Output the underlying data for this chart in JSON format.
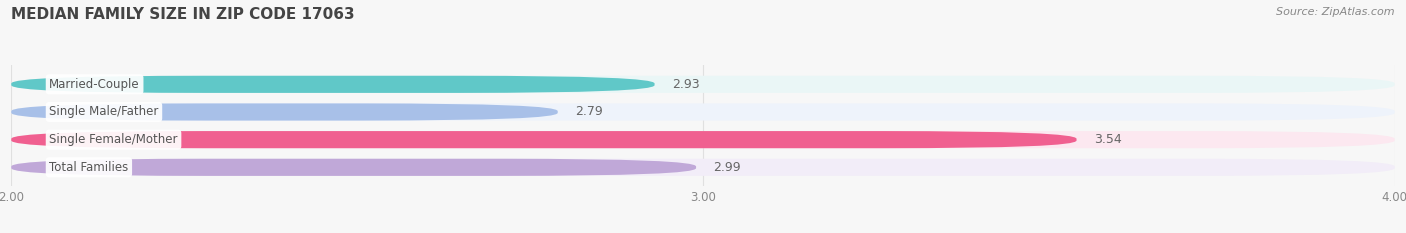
{
  "title": "MEDIAN FAMILY SIZE IN ZIP CODE 17063",
  "source": "Source: ZipAtlas.com",
  "categories": [
    "Married-Couple",
    "Single Male/Father",
    "Single Female/Mother",
    "Total Families"
  ],
  "values": [
    2.93,
    2.79,
    3.54,
    2.99
  ],
  "bar_colors": [
    "#60c8c8",
    "#a8c0e8",
    "#f06090",
    "#c0a8d8"
  ],
  "bar_bg_colors": [
    "#eaf6f6",
    "#eef3fb",
    "#fce8f0",
    "#f2edf8"
  ],
  "xlim": [
    2.0,
    4.0
  ],
  "xticks": [
    2.0,
    3.0,
    4.0
  ],
  "xtick_labels": [
    "2.00",
    "3.00",
    "4.00"
  ],
  "bar_height": 0.62,
  "bar_gap": 0.38,
  "background_color": "#f7f7f7",
  "title_fontsize": 11,
  "label_fontsize": 8.5,
  "value_fontsize": 9,
  "source_fontsize": 8,
  "label_color": "#555555",
  "tick_color": "#aaaaaa",
  "grid_color": "#e0e0e0"
}
